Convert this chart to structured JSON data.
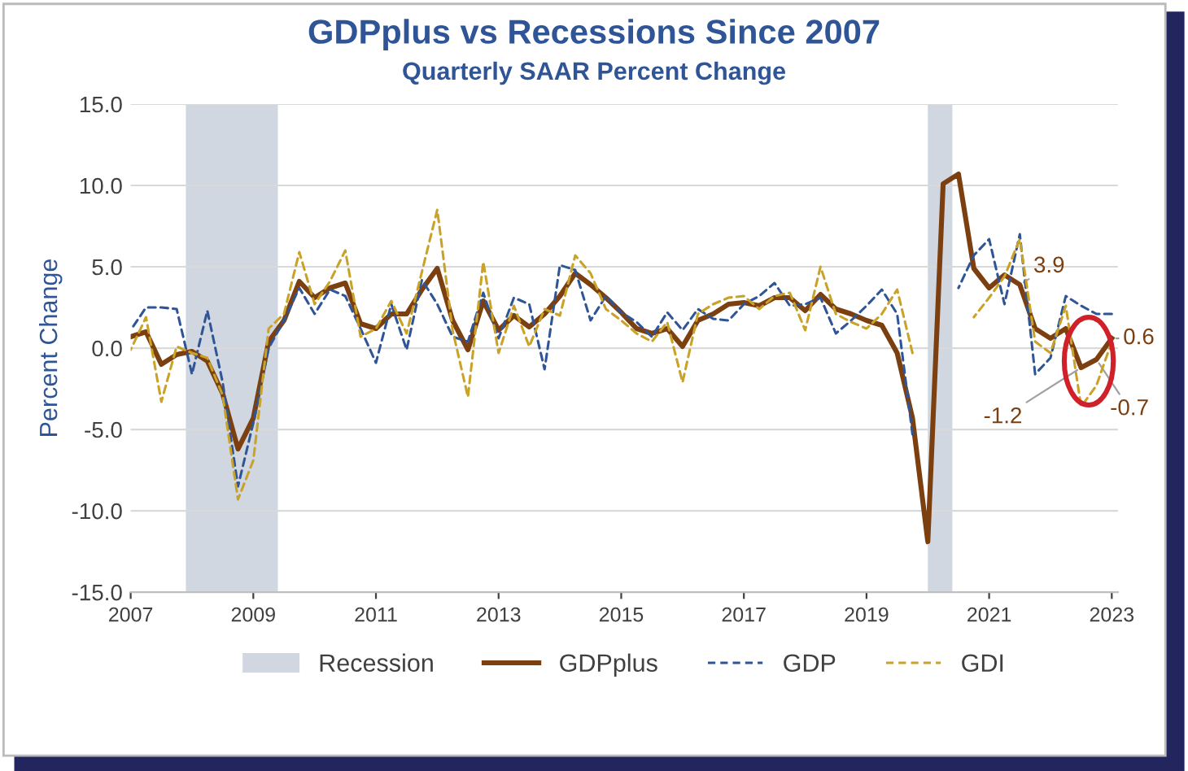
{
  "chart_data": {
    "type": "line",
    "title": "GDPplus vs Recessions Since 2007",
    "subtitle": "Quarterly SAAR Percent Change",
    "ylabel": "Percent Change",
    "x": [
      2007,
      2007.25,
      2007.5,
      2007.75,
      2008,
      2008.25,
      2008.5,
      2008.75,
      2009,
      2009.25,
      2009.5,
      2009.75,
      2010,
      2010.25,
      2010.5,
      2010.75,
      2011,
      2011.25,
      2011.5,
      2011.75,
      2012,
      2012.25,
      2012.5,
      2012.75,
      2013,
      2013.25,
      2013.5,
      2013.75,
      2014,
      2014.25,
      2014.5,
      2014.75,
      2015,
      2015.25,
      2015.5,
      2015.75,
      2016,
      2016.25,
      2016.5,
      2016.75,
      2017,
      2017.25,
      2017.5,
      2017.75,
      2018,
      2018.25,
      2018.5,
      2018.75,
      2019,
      2019.25,
      2019.5,
      2019.75,
      2020,
      2020.25,
      2020.5,
      2020.75,
      2021,
      2021.25,
      2021.5,
      2021.75,
      2022,
      2022.25,
      2022.5,
      2022.75,
      2023
    ],
    "series": [
      {
        "name": "GDPplus",
        "color": "#7b3f10",
        "line_style": "solid",
        "values": [
          0.7,
          1.0,
          -1.0,
          -0.4,
          -0.2,
          -0.8,
          -2.8,
          -6.2,
          -4.3,
          0.4,
          1.7,
          4.1,
          3.1,
          3.7,
          4.0,
          1.5,
          1.2,
          2.1,
          2.1,
          3.6,
          4.9,
          1.7,
          -0.1,
          2.9,
          1.1,
          2.0,
          1.3,
          2.1,
          3.2,
          4.6,
          3.9,
          3.1,
          2.2,
          1.2,
          0.9,
          1.2,
          0.1,
          1.7,
          2.1,
          2.7,
          2.8,
          2.6,
          3.1,
          3.1,
          2.3,
          3.3,
          2.4,
          2.1,
          1.7,
          1.4,
          -0.3,
          -4.3,
          -11.9,
          10.1,
          10.7,
          4.9,
          3.7,
          4.5,
          3.9,
          1.2,
          0.6,
          1.2,
          -1.2,
          -0.7,
          0.6
        ]
      },
      {
        "name": "GDP",
        "color": "#2f5597",
        "line_style": "dashed",
        "values": [
          1.1,
          2.5,
          2.5,
          2.4,
          -1.6,
          2.3,
          -2.1,
          -8.5,
          -4.6,
          0.0,
          1.7,
          3.7,
          2.1,
          3.6,
          3.2,
          1.2,
          -0.9,
          2.7,
          -0.1,
          4.2,
          2.7,
          0.7,
          0.4,
          3.4,
          0.6,
          3.1,
          2.7,
          -1.3,
          5.1,
          4.8,
          1.7,
          3.2,
          2.2,
          1.6,
          0.7,
          2.2,
          1.1,
          2.4,
          1.8,
          1.7,
          2.7,
          3.2,
          4.0,
          2.6,
          2.7,
          3.1,
          0.9,
          1.7,
          2.6,
          3.6,
          2.1,
          -5.3,
          null,
          null,
          3.7,
          5.7,
          6.7,
          2.7,
          7.0,
          -1.6,
          -0.6,
          3.2,
          2.6,
          2.1,
          2.1
        ]
      },
      {
        "name": "GDI",
        "color": "#c9a227",
        "line_style": "dashed",
        "values": [
          -0.1,
          1.9,
          -3.3,
          0.1,
          -0.3,
          -0.6,
          -2.9,
          -9.3,
          -6.9,
          1.2,
          2.1,
          5.9,
          2.7,
          4.1,
          6.0,
          0.7,
          1.2,
          2.9,
          0.9,
          4.7,
          8.5,
          1.1,
          -3.0,
          5.3,
          -0.3,
          2.6,
          0.1,
          2.4,
          2.0,
          5.7,
          4.6,
          2.4,
          1.7,
          0.9,
          0.4,
          1.6,
          -2.1,
          2.1,
          2.7,
          3.1,
          3.2,
          2.4,
          3.2,
          3.4,
          1.1,
          5.0,
          2.1,
          1.6,
          1.2,
          2.1,
          3.6,
          -0.3,
          null,
          null,
          null,
          1.9,
          3.1,
          4.4,
          6.7,
          0.4,
          -0.3,
          2.6,
          -3.6,
          -2.3,
          0.4
        ]
      }
    ],
    "bands": [
      {
        "axis": "x",
        "from": 2007.9,
        "to": 2009.4,
        "label": "Recession",
        "color": "#d0d7e0"
      },
      {
        "axis": "x",
        "from": 2020.0,
        "to": 2020.4,
        "color": "#d0d7e0"
      }
    ],
    "annotations": [
      {
        "text": "3.9",
        "x": 2021.5,
        "y": 3.9
      },
      {
        "text": "-1.2",
        "x": 2022.5,
        "y": -1.2
      },
      {
        "text": "-0.7",
        "x": 2022.75,
        "y": -0.7
      },
      {
        "text": "0.6",
        "x": 2023,
        "y": 0.6
      }
    ],
    "xlim": [
      2007,
      2023.1
    ],
    "xticks": [
      2007,
      2009,
      2011,
      2013,
      2015,
      2017,
      2019,
      2021,
      2023
    ],
    "ylim": [
      -15,
      15
    ],
    "yticks": [
      {
        "value": -15,
        "label": "-15.0"
      },
      {
        "value": -10,
        "label": "-10.0"
      },
      {
        "value": -5,
        "label": "-5.0"
      },
      {
        "value": 0,
        "label": "0.0"
      },
      {
        "value": 5,
        "label": "5.0"
      },
      {
        "value": 10,
        "label": "10.0"
      },
      {
        "value": 15,
        "label": "15.0"
      }
    ],
    "grid": "y",
    "legend": "bottom",
    "marker": "none"
  }
}
